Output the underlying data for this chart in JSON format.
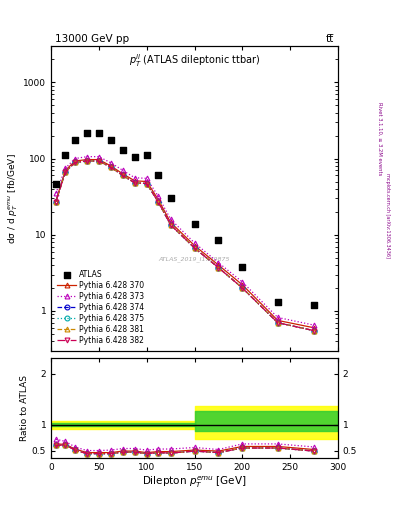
{
  "title_top": "13000 GeV pp",
  "title_top_right": "tt̅",
  "inner_title": "$p_T^{ll}$ (ATLAS dileptonic ttbar)",
  "watermark": "ATLAS_2019_I1759875",
  "right_label_top": "Rivet 3.1.10, ≥ 3.2M events",
  "right_label_bottom": "mcplots.cern.ch [arXiv:1306.3436]",
  "xlabel": "Dilepton $p_T^{emu}$ [GeV]",
  "ylabel_top": "dσ / d $p_T^{emu}$ [fb/GeV]",
  "ylabel_bottom": "Ratio to ATLAS",
  "x_centers": [
    5,
    15,
    25,
    37.5,
    50,
    62.5,
    75,
    87.5,
    100,
    112,
    125,
    150,
    175,
    200,
    237,
    275
  ],
  "atlas_data": [
    47,
    110,
    175,
    215,
    215,
    175,
    130,
    105,
    110,
    60,
    30,
    14,
    8.5,
    3.8,
    1.3,
    1.2
  ],
  "py370_y": [
    28,
    70,
    93,
    97,
    97,
    80,
    63,
    51,
    50,
    29,
    14.5,
    7.2,
    4.0,
    2.2,
    0.75,
    0.6
  ],
  "py373_y": [
    35,
    75,
    100,
    106,
    106,
    88,
    70,
    56,
    55,
    32,
    16,
    7.8,
    4.3,
    2.4,
    0.82,
    0.65
  ],
  "py374_y": [
    27,
    67,
    89,
    93,
    93,
    77,
    60,
    48,
    47,
    27,
    13.5,
    6.7,
    3.7,
    2.0,
    0.7,
    0.55
  ],
  "py375_y": [
    27,
    67,
    89,
    93,
    93,
    77,
    60,
    48,
    47,
    27,
    13.5,
    6.7,
    3.7,
    2.0,
    0.7,
    0.55
  ],
  "py381_y": [
    27,
    67,
    89,
    93,
    93,
    77,
    60,
    48,
    47,
    27,
    13.5,
    6.7,
    3.7,
    2.0,
    0.7,
    0.55
  ],
  "py382_y": [
    27,
    67,
    89,
    93,
    93,
    77,
    60,
    48,
    47,
    27,
    13.5,
    6.7,
    3.7,
    2.0,
    0.7,
    0.55
  ],
  "ratio_x": [
    5,
    15,
    25,
    37.5,
    50,
    62.5,
    75,
    87.5,
    100,
    112,
    125,
    150,
    175,
    200,
    237,
    275
  ],
  "ratio_370": [
    0.63,
    0.62,
    0.53,
    0.46,
    0.46,
    0.46,
    0.49,
    0.49,
    0.46,
    0.48,
    0.48,
    0.51,
    0.49,
    0.58,
    0.58,
    0.52
  ],
  "ratio_373": [
    0.72,
    0.68,
    0.57,
    0.5,
    0.5,
    0.51,
    0.54,
    0.54,
    0.51,
    0.53,
    0.53,
    0.56,
    0.52,
    0.63,
    0.63,
    0.57
  ],
  "ratio_374": [
    0.6,
    0.61,
    0.51,
    0.44,
    0.44,
    0.44,
    0.47,
    0.47,
    0.44,
    0.46,
    0.45,
    0.49,
    0.46,
    0.55,
    0.55,
    0.49
  ],
  "ratio_375": [
    0.6,
    0.61,
    0.51,
    0.44,
    0.44,
    0.44,
    0.47,
    0.47,
    0.44,
    0.46,
    0.45,
    0.49,
    0.46,
    0.55,
    0.55,
    0.49
  ],
  "ratio_381": [
    0.6,
    0.61,
    0.51,
    0.44,
    0.44,
    0.44,
    0.47,
    0.47,
    0.44,
    0.46,
    0.45,
    0.49,
    0.46,
    0.55,
    0.55,
    0.49
  ],
  "ratio_382": [
    0.6,
    0.61,
    0.51,
    0.44,
    0.44,
    0.44,
    0.47,
    0.47,
    0.44,
    0.46,
    0.45,
    0.49,
    0.46,
    0.55,
    0.55,
    0.49
  ],
  "color_370": "#cc2200",
  "color_373": "#bb00bb",
  "color_374": "#0000cc",
  "color_375": "#00aaaa",
  "color_381": "#cc8800",
  "color_382": "#cc0055",
  "legend_entries": [
    "ATLAS",
    "Pythia 6.428 370",
    "Pythia 6.428 373",
    "Pythia 6.428 374",
    "Pythia 6.428 375",
    "Pythia 6.428 381",
    "Pythia 6.428 382"
  ]
}
